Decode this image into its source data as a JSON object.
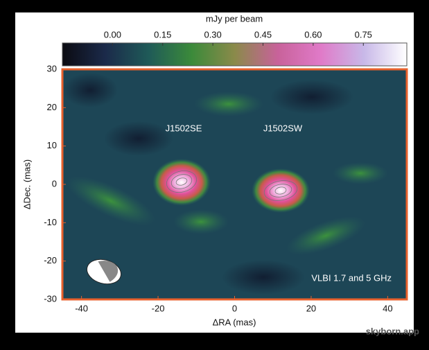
{
  "chart_data": {
    "type": "image",
    "xlabel": "ΔRA (mas)",
    "ylabel": "ΔDec. (mas)",
    "xlim": [
      -45,
      45
    ],
    "xticks": [
      -40,
      -20,
      0,
      20,
      40
    ],
    "ylim": [
      -30,
      30
    ],
    "yticks": [
      -30,
      -20,
      -10,
      0,
      10,
      20,
      30
    ],
    "colorbar": {
      "label": "mJy per beam",
      "clim": [
        -0.15,
        0.88
      ],
      "ticks": [
        {
          "value": 0,
          "label": "0.00"
        },
        {
          "value": 0.15,
          "label": "0.15"
        },
        {
          "value": 0.3,
          "label": "0.30"
        },
        {
          "value": 0.45,
          "label": "0.45"
        },
        {
          "value": 0.6,
          "label": "0.60"
        },
        {
          "value": 0.75,
          "label": "0.75"
        }
      ],
      "colormap": [
        "#0b0b12",
        "#1b2a4a",
        "#1f5a58",
        "#3b8a3a",
        "#8a8a4a",
        "#c8629a",
        "#e07ac8",
        "#c8b8e8",
        "#ffffff"
      ]
    },
    "annotations": [
      "J1502SE",
      "J1502SW",
      "VLBI 1.7 and 5 GHz"
    ],
    "watermark": "skyborn.app"
  }
}
